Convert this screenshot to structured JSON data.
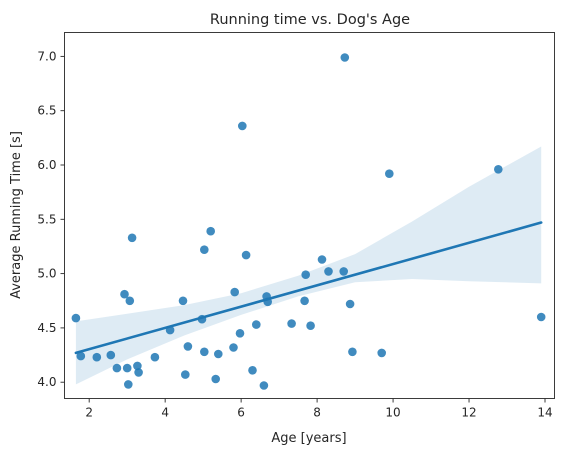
{
  "chart_data": {
    "type": "scatter",
    "title": "Running time vs. Dog's Age",
    "xlabel": "Age [years]",
    "ylabel": "Average Running Time [s]",
    "xlim": [
      1.35,
      14.25
    ],
    "ylim": [
      3.85,
      7.22
    ],
    "xticks": [
      2,
      4,
      6,
      8,
      10,
      12,
      14
    ],
    "yticks": [
      4.0,
      4.5,
      5.0,
      5.5,
      6.0,
      6.5,
      7.0
    ],
    "grid": false,
    "colors": {
      "points": "#1f77b4",
      "line": "#1f77b4",
      "band": "#1f77b4"
    },
    "points": [
      [
        1.65,
        4.59
      ],
      [
        1.78,
        4.24
      ],
      [
        2.2,
        4.23
      ],
      [
        2.57,
        4.25
      ],
      [
        2.73,
        4.13
      ],
      [
        2.93,
        4.81
      ],
      [
        3.0,
        4.13
      ],
      [
        3.03,
        3.98
      ],
      [
        3.07,
        4.75
      ],
      [
        3.13,
        5.33
      ],
      [
        3.27,
        4.15
      ],
      [
        3.3,
        4.09
      ],
      [
        3.73,
        4.23
      ],
      [
        4.13,
        4.48
      ],
      [
        4.47,
        4.75
      ],
      [
        4.53,
        4.07
      ],
      [
        4.6,
        4.33
      ],
      [
        4.97,
        4.58
      ],
      [
        5.03,
        4.28
      ],
      [
        5.03,
        5.22
      ],
      [
        5.2,
        5.39
      ],
      [
        5.33,
        4.03
      ],
      [
        5.4,
        4.26
      ],
      [
        5.8,
        4.32
      ],
      [
        5.83,
        4.83
      ],
      [
        5.97,
        4.45
      ],
      [
        6.03,
        6.36
      ],
      [
        6.13,
        5.17
      ],
      [
        6.3,
        4.11
      ],
      [
        6.4,
        4.53
      ],
      [
        6.6,
        3.97
      ],
      [
        6.67,
        4.79
      ],
      [
        6.7,
        4.74
      ],
      [
        7.33,
        4.54
      ],
      [
        7.67,
        4.75
      ],
      [
        7.7,
        4.99
      ],
      [
        7.83,
        4.52
      ],
      [
        8.13,
        5.13
      ],
      [
        8.3,
        5.02
      ],
      [
        8.7,
        5.02
      ],
      [
        8.73,
        6.99
      ],
      [
        8.87,
        4.72
      ],
      [
        8.93,
        4.28
      ],
      [
        9.7,
        4.27
      ],
      [
        9.9,
        5.92
      ],
      [
        12.77,
        5.96
      ],
      [
        13.9,
        4.6
      ]
    ],
    "regression": {
      "x": [
        1.65,
        13.9
      ],
      "y": [
        4.27,
        5.47
      ]
    },
    "confidence_band": {
      "x": [
        1.65,
        3.0,
        4.5,
        6.0,
        7.5,
        9.0,
        10.5,
        12.0,
        13.9
      ],
      "lower": [
        3.98,
        4.21,
        4.43,
        4.62,
        4.79,
        4.92,
        4.95,
        4.93,
        4.91
      ],
      "upper": [
        4.56,
        4.63,
        4.71,
        4.82,
        4.98,
        5.18,
        5.48,
        5.8,
        6.17
      ]
    }
  }
}
